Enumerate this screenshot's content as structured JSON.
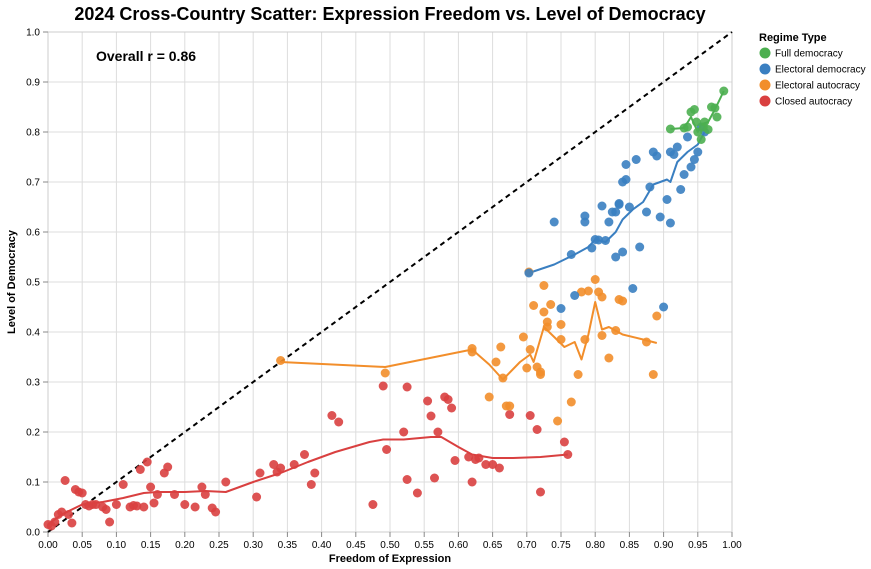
{
  "chart_data": {
    "type": "scatter",
    "title": "2024 Cross-Country Scatter: Expression Freedom vs. Level of Democracy",
    "xlabel": "Freedom of Expression",
    "ylabel": "Level of Democracy",
    "xlim": [
      0,
      1
    ],
    "ylim": [
      0,
      1
    ],
    "xticks": [
      "0.00",
      "0.05",
      "0.10",
      "0.15",
      "0.20",
      "0.25",
      "0.30",
      "0.35",
      "0.40",
      "0.45",
      "0.50",
      "0.55",
      "0.60",
      "0.65",
      "0.70",
      "0.75",
      "0.80",
      "0.85",
      "0.90",
      "0.95",
      "1.00"
    ],
    "yticks": [
      "0.0",
      "0.1",
      "0.2",
      "0.3",
      "0.4",
      "0.5",
      "0.6",
      "0.7",
      "0.8",
      "0.9",
      "1.0"
    ],
    "grid": true,
    "legend": {
      "title": "Regime Type",
      "position": "top-right"
    },
    "annotation": "Overall r = 0.86",
    "reference_line": {
      "style": "dashed",
      "from": [
        0,
        0
      ],
      "to": [
        1,
        1
      ]
    },
    "series": [
      {
        "name": "Full democracy",
        "color": "#4caf50",
        "points": [
          [
            0.91,
            0.806
          ],
          [
            0.93,
            0.808
          ],
          [
            0.935,
            0.81
          ],
          [
            0.94,
            0.84
          ],
          [
            0.945,
            0.845
          ],
          [
            0.948,
            0.82
          ],
          [
            0.95,
            0.8
          ],
          [
            0.955,
            0.785
          ],
          [
            0.958,
            0.81
          ],
          [
            0.96,
            0.82
          ],
          [
            0.965,
            0.805
          ],
          [
            0.97,
            0.85
          ],
          [
            0.975,
            0.848
          ],
          [
            0.978,
            0.83
          ],
          [
            0.988,
            0.882
          ]
        ],
        "trend": [
          [
            0.91,
            0.806
          ],
          [
            0.93,
            0.808
          ],
          [
            0.94,
            0.83
          ],
          [
            0.95,
            0.8
          ],
          [
            0.955,
            0.815
          ],
          [
            0.965,
            0.82
          ],
          [
            0.975,
            0.845
          ],
          [
            0.988,
            0.882
          ]
        ]
      },
      {
        "name": "Electoral democracy",
        "color": "#3a7fc1",
        "points": [
          [
            0.703,
            0.518
          ],
          [
            0.74,
            0.62
          ],
          [
            0.75,
            0.447
          ],
          [
            0.765,
            0.555
          ],
          [
            0.77,
            0.473
          ],
          [
            0.785,
            0.632
          ],
          [
            0.785,
            0.62
          ],
          [
            0.795,
            0.568
          ],
          [
            0.8,
            0.585
          ],
          [
            0.805,
            0.584
          ],
          [
            0.81,
            0.652
          ],
          [
            0.815,
            0.583
          ],
          [
            0.82,
            0.62
          ],
          [
            0.825,
            0.64
          ],
          [
            0.83,
            0.55
          ],
          [
            0.83,
            0.64
          ],
          [
            0.835,
            0.657
          ],
          [
            0.835,
            0.655
          ],
          [
            0.84,
            0.7
          ],
          [
            0.84,
            0.56
          ],
          [
            0.845,
            0.735
          ],
          [
            0.845,
            0.705
          ],
          [
            0.85,
            0.65
          ],
          [
            0.855,
            0.487
          ],
          [
            0.86,
            0.745
          ],
          [
            0.865,
            0.57
          ],
          [
            0.875,
            0.64
          ],
          [
            0.88,
            0.69
          ],
          [
            0.885,
            0.76
          ],
          [
            0.89,
            0.752
          ],
          [
            0.895,
            0.63
          ],
          [
            0.9,
            0.45
          ],
          [
            0.905,
            0.665
          ],
          [
            0.91,
            0.76
          ],
          [
            0.91,
            0.618
          ],
          [
            0.915,
            0.755
          ],
          [
            0.92,
            0.77
          ],
          [
            0.925,
            0.685
          ],
          [
            0.93,
            0.715
          ],
          [
            0.935,
            0.79
          ],
          [
            0.94,
            0.73
          ],
          [
            0.945,
            0.745
          ],
          [
            0.95,
            0.76
          ],
          [
            0.955,
            0.81
          ],
          [
            0.96,
            0.8
          ]
        ],
        "trend": [
          [
            0.703,
            0.518
          ],
          [
            0.74,
            0.535
          ],
          [
            0.77,
            0.555
          ],
          [
            0.79,
            0.57
          ],
          [
            0.8,
            0.585
          ],
          [
            0.815,
            0.58
          ],
          [
            0.83,
            0.6
          ],
          [
            0.84,
            0.625
          ],
          [
            0.855,
            0.645
          ],
          [
            0.87,
            0.66
          ],
          [
            0.885,
            0.695
          ],
          [
            0.895,
            0.7
          ],
          [
            0.905,
            0.705
          ],
          [
            0.91,
            0.7
          ],
          [
            0.92,
            0.74
          ],
          [
            0.935,
            0.76
          ],
          [
            0.95,
            0.775
          ],
          [
            0.96,
            0.8
          ]
        ]
      },
      {
        "name": "Electoral autocracy",
        "color": "#f28e2b",
        "points": [
          [
            0.34,
            0.343
          ],
          [
            0.493,
            0.318
          ],
          [
            0.62,
            0.367
          ],
          [
            0.62,
            0.36
          ],
          [
            0.645,
            0.27
          ],
          [
            0.655,
            0.34
          ],
          [
            0.662,
            0.37
          ],
          [
            0.665,
            0.308
          ],
          [
            0.67,
            0.252
          ],
          [
            0.675,
            0.252
          ],
          [
            0.695,
            0.39
          ],
          [
            0.7,
            0.328
          ],
          [
            0.703,
            0.52
          ],
          [
            0.705,
            0.365
          ],
          [
            0.71,
            0.453
          ],
          [
            0.715,
            0.33
          ],
          [
            0.72,
            0.315
          ],
          [
            0.72,
            0.32
          ],
          [
            0.725,
            0.493
          ],
          [
            0.725,
            0.44
          ],
          [
            0.73,
            0.41
          ],
          [
            0.73,
            0.42
          ],
          [
            0.735,
            0.455
          ],
          [
            0.745,
            0.222
          ],
          [
            0.75,
            0.385
          ],
          [
            0.75,
            0.415
          ],
          [
            0.765,
            0.26
          ],
          [
            0.775,
            0.315
          ],
          [
            0.78,
            0.48
          ],
          [
            0.785,
            0.385
          ],
          [
            0.79,
            0.482
          ],
          [
            0.8,
            0.505
          ],
          [
            0.805,
            0.48
          ],
          [
            0.81,
            0.47
          ],
          [
            0.81,
            0.393
          ],
          [
            0.82,
            0.348
          ],
          [
            0.83,
            0.403
          ],
          [
            0.835,
            0.465
          ],
          [
            0.84,
            0.462
          ],
          [
            0.875,
            0.38
          ],
          [
            0.885,
            0.315
          ],
          [
            0.89,
            0.432
          ]
        ],
        "trend": [
          [
            0.34,
            0.34
          ],
          [
            0.493,
            0.33
          ],
          [
            0.62,
            0.365
          ],
          [
            0.645,
            0.335
          ],
          [
            0.665,
            0.305
          ],
          [
            0.69,
            0.34
          ],
          [
            0.705,
            0.355
          ],
          [
            0.71,
            0.34
          ],
          [
            0.725,
            0.41
          ],
          [
            0.74,
            0.39
          ],
          [
            0.755,
            0.37
          ],
          [
            0.77,
            0.38
          ],
          [
            0.78,
            0.345
          ],
          [
            0.79,
            0.395
          ],
          [
            0.8,
            0.46
          ],
          [
            0.81,
            0.405
          ],
          [
            0.82,
            0.41
          ],
          [
            0.84,
            0.395
          ],
          [
            0.87,
            0.385
          ],
          [
            0.89,
            0.378
          ]
        ]
      },
      {
        "name": "Closed autocracy",
        "color": "#d94040",
        "points": [
          [
            0.0,
            0.015
          ],
          [
            0.005,
            0.012
          ],
          [
            0.01,
            0.02
          ],
          [
            0.015,
            0.035
          ],
          [
            0.02,
            0.04
          ],
          [
            0.025,
            0.103
          ],
          [
            0.03,
            0.035
          ],
          [
            0.035,
            0.018
          ],
          [
            0.04,
            0.085
          ],
          [
            0.045,
            0.08
          ],
          [
            0.05,
            0.078
          ],
          [
            0.055,
            0.055
          ],
          [
            0.06,
            0.052
          ],
          [
            0.065,
            0.055
          ],
          [
            0.07,
            0.055
          ],
          [
            0.08,
            0.05
          ],
          [
            0.085,
            0.045
          ],
          [
            0.09,
            0.02
          ],
          [
            0.1,
            0.055
          ],
          [
            0.11,
            0.095
          ],
          [
            0.12,
            0.05
          ],
          [
            0.125,
            0.053
          ],
          [
            0.13,
            0.052
          ],
          [
            0.135,
            0.125
          ],
          [
            0.14,
            0.05
          ],
          [
            0.145,
            0.14
          ],
          [
            0.15,
            0.09
          ],
          [
            0.155,
            0.058
          ],
          [
            0.16,
            0.075
          ],
          [
            0.17,
            0.118
          ],
          [
            0.175,
            0.13
          ],
          [
            0.185,
            0.075
          ],
          [
            0.2,
            0.055
          ],
          [
            0.215,
            0.05
          ],
          [
            0.225,
            0.09
          ],
          [
            0.23,
            0.075
          ],
          [
            0.24,
            0.048
          ],
          [
            0.245,
            0.04
          ],
          [
            0.26,
            0.1
          ],
          [
            0.305,
            0.07
          ],
          [
            0.31,
            0.118
          ],
          [
            0.33,
            0.135
          ],
          [
            0.335,
            0.12
          ],
          [
            0.34,
            0.128
          ],
          [
            0.36,
            0.135
          ],
          [
            0.375,
            0.155
          ],
          [
            0.385,
            0.095
          ],
          [
            0.39,
            0.118
          ],
          [
            0.415,
            0.233
          ],
          [
            0.425,
            0.22
          ],
          [
            0.475,
            0.055
          ],
          [
            0.49,
            0.292
          ],
          [
            0.495,
            0.165
          ],
          [
            0.52,
            0.2
          ],
          [
            0.525,
            0.105
          ],
          [
            0.525,
            0.29
          ],
          [
            0.54,
            0.078
          ],
          [
            0.555,
            0.262
          ],
          [
            0.56,
            0.232
          ],
          [
            0.565,
            0.108
          ],
          [
            0.57,
            0.2
          ],
          [
            0.58,
            0.27
          ],
          [
            0.585,
            0.265
          ],
          [
            0.59,
            0.248
          ],
          [
            0.595,
            0.143
          ],
          [
            0.615,
            0.15
          ],
          [
            0.62,
            0.1
          ],
          [
            0.625,
            0.145
          ],
          [
            0.63,
            0.148
          ],
          [
            0.64,
            0.135
          ],
          [
            0.65,
            0.135
          ],
          [
            0.66,
            0.128
          ],
          [
            0.675,
            0.235
          ],
          [
            0.705,
            0.233
          ],
          [
            0.715,
            0.205
          ],
          [
            0.72,
            0.08
          ],
          [
            0.755,
            0.18
          ],
          [
            0.76,
            0.155
          ]
        ],
        "trend": [
          [
            0.0,
            0.015
          ],
          [
            0.02,
            0.035
          ],
          [
            0.05,
            0.055
          ],
          [
            0.08,
            0.06
          ],
          [
            0.11,
            0.068
          ],
          [
            0.14,
            0.078
          ],
          [
            0.16,
            0.08
          ],
          [
            0.2,
            0.08
          ],
          [
            0.23,
            0.082
          ],
          [
            0.26,
            0.08
          ],
          [
            0.3,
            0.1
          ],
          [
            0.34,
            0.118
          ],
          [
            0.38,
            0.14
          ],
          [
            0.42,
            0.16
          ],
          [
            0.47,
            0.18
          ],
          [
            0.49,
            0.185
          ],
          [
            0.52,
            0.185
          ],
          [
            0.56,
            0.19
          ],
          [
            0.575,
            0.19
          ],
          [
            0.6,
            0.17
          ],
          [
            0.62,
            0.155
          ],
          [
            0.65,
            0.148
          ],
          [
            0.68,
            0.148
          ],
          [
            0.72,
            0.15
          ],
          [
            0.76,
            0.155
          ]
        ]
      }
    ]
  }
}
